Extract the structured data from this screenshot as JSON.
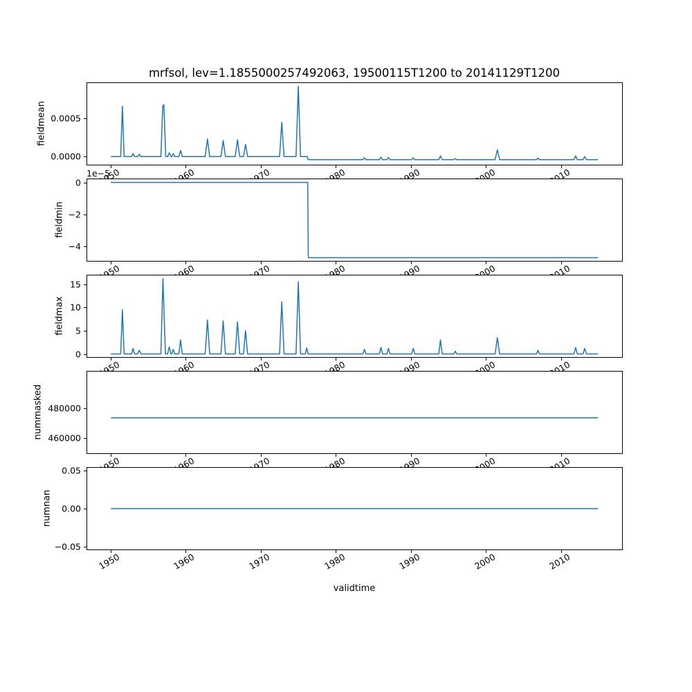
{
  "chart_data": {
    "type": "line",
    "title": "mrfsol, lev=1.1855000257492063, 19500115T1200 to 20141129T1200",
    "xlabel": "validtime",
    "line_color": "#1f77b4",
    "grid": false,
    "legend": false,
    "xlim": [
      1946.8,
      2018.2
    ],
    "xticks": [
      {
        "value": 1950,
        "label": "1950"
      },
      {
        "value": 1960,
        "label": "1960"
      },
      {
        "value": 1970,
        "label": "1970"
      },
      {
        "value": 1980,
        "label": "1980"
      },
      {
        "value": 1990,
        "label": "1990"
      },
      {
        "value": 2000,
        "label": "2000"
      },
      {
        "value": 2010,
        "label": "2010"
      }
    ],
    "subplots": [
      {
        "ylabel": "fieldmean",
        "ylim": [
          -0.000115,
          0.000972
        ],
        "yticks": [
          {
            "value": 0.0,
            "label": "0.0000"
          },
          {
            "value": 0.0005,
            "label": "0.0005"
          }
        ],
        "offset_text": null,
        "points": [
          [
            1950.04,
            0
          ],
          [
            1951.35,
            0
          ],
          [
            1951.58,
            0.00066
          ],
          [
            1951.8,
            0
          ],
          [
            1952.8,
            0
          ],
          [
            1953.0,
            4e-05
          ],
          [
            1953.2,
            0
          ],
          [
            1953.6,
            0
          ],
          [
            1953.82,
            3e-05
          ],
          [
            1954.05,
            0
          ],
          [
            1956.7,
            0
          ],
          [
            1956.95,
            0.00066
          ],
          [
            1957.1,
            0.00068
          ],
          [
            1957.35,
            0
          ],
          [
            1957.6,
            0
          ],
          [
            1957.82,
            5e-05
          ],
          [
            1958.05,
            0
          ],
          [
            1958.15,
            0
          ],
          [
            1958.35,
            4e-05
          ],
          [
            1958.55,
            0
          ],
          [
            1959.1,
            0
          ],
          [
            1959.32,
            8e-05
          ],
          [
            1959.55,
            0
          ],
          [
            1962.6,
            0
          ],
          [
            1962.9,
            0.00023
          ],
          [
            1963.2,
            0
          ],
          [
            1964.7,
            0
          ],
          [
            1965.0,
            0.00021
          ],
          [
            1965.3,
            0
          ],
          [
            1966.6,
            0
          ],
          [
            1966.9,
            0.00022
          ],
          [
            1967.2,
            0
          ],
          [
            1967.7,
            0
          ],
          [
            1967.97,
            0.00016
          ],
          [
            1968.25,
            0
          ],
          [
            1972.5,
            0
          ],
          [
            1972.8,
            0.00045
          ],
          [
            1973.1,
            0
          ],
          [
            1974.7,
            0
          ],
          [
            1975.0,
            0.00092
          ],
          [
            1975.3,
            0
          ],
          [
            1976.2,
            0
          ],
          [
            1976.3,
            -4e-05
          ],
          [
            1983.6,
            -4e-05
          ],
          [
            1983.8,
            -1.5e-05
          ],
          [
            1984.0,
            -4e-05
          ],
          [
            1985.8,
            -4e-05
          ],
          [
            1986.0,
            -8e-06
          ],
          [
            1986.2,
            -4e-05
          ],
          [
            1986.8,
            -4e-05
          ],
          [
            1987.0,
            -1.2e-05
          ],
          [
            1987.2,
            -4e-05
          ],
          [
            1990.1,
            -4e-05
          ],
          [
            1990.3,
            -1.5e-05
          ],
          [
            1990.5,
            -4e-05
          ],
          [
            1993.7,
            -4e-05
          ],
          [
            1993.92,
            1e-05
          ],
          [
            1994.15,
            -4e-05
          ],
          [
            1995.7,
            -4e-05
          ],
          [
            1995.9,
            -2.5e-05
          ],
          [
            1996.1,
            -4e-05
          ],
          [
            2001.2,
            -4e-05
          ],
          [
            2001.5,
            9e-05
          ],
          [
            2001.8,
            -4e-05
          ],
          [
            2006.7,
            -4e-05
          ],
          [
            2006.9,
            -2e-05
          ],
          [
            2007.1,
            -4e-05
          ],
          [
            2011.7,
            -4e-05
          ],
          [
            2011.92,
            1e-05
          ],
          [
            2012.15,
            -4e-05
          ],
          [
            2012.9,
            -4e-05
          ],
          [
            2013.12,
            0.0
          ],
          [
            2013.35,
            -4e-05
          ],
          [
            2014.91,
            -4e-05
          ]
        ]
      },
      {
        "ylabel": "fieldmin",
        "ylim": [
          -4.94e-05,
          2.4e-06
        ],
        "yticks": [
          {
            "value": 0.0,
            "label": "0"
          },
          {
            "value": -2e-05,
            "label": "−2"
          },
          {
            "value": -4e-05,
            "label": "−4"
          }
        ],
        "offset_text": "1e−5",
        "points": [
          [
            1950.04,
            0
          ],
          [
            1976.25,
            0
          ],
          [
            1976.33,
            -4.7e-05
          ],
          [
            2014.91,
            -4.7e-05
          ]
        ]
      },
      {
        "ylabel": "fieldmax",
        "ylim": [
          -0.81,
          17.01
        ],
        "yticks": [
          {
            "value": 0,
            "label": "0"
          },
          {
            "value": 5,
            "label": "5"
          },
          {
            "value": 10,
            "label": "10"
          },
          {
            "value": 15,
            "label": "15"
          }
        ],
        "offset_text": null,
        "points": [
          [
            1950.04,
            0
          ],
          [
            1951.35,
            0
          ],
          [
            1951.58,
            9.5
          ],
          [
            1951.8,
            0
          ],
          [
            1952.8,
            0
          ],
          [
            1953.0,
            1.2
          ],
          [
            1953.2,
            0
          ],
          [
            1953.6,
            0
          ],
          [
            1953.82,
            0.8
          ],
          [
            1954.05,
            0
          ],
          [
            1956.7,
            0
          ],
          [
            1956.98,
            16.2
          ],
          [
            1957.3,
            0
          ],
          [
            1957.6,
            0
          ],
          [
            1957.82,
            1.5
          ],
          [
            1958.05,
            0
          ],
          [
            1958.15,
            0
          ],
          [
            1958.35,
            1.0
          ],
          [
            1958.55,
            0
          ],
          [
            1959.1,
            0
          ],
          [
            1959.32,
            3.0
          ],
          [
            1959.55,
            0
          ],
          [
            1962.6,
            0
          ],
          [
            1962.9,
            7.3
          ],
          [
            1963.2,
            0
          ],
          [
            1964.7,
            0
          ],
          [
            1965.0,
            7.1
          ],
          [
            1965.3,
            0
          ],
          [
            1966.6,
            0
          ],
          [
            1966.9,
            6.9
          ],
          [
            1967.2,
            0
          ],
          [
            1967.7,
            0
          ],
          [
            1967.97,
            5.0
          ],
          [
            1968.25,
            0
          ],
          [
            1972.5,
            0
          ],
          [
            1972.8,
            11.2
          ],
          [
            1973.1,
            0
          ],
          [
            1974.7,
            0
          ],
          [
            1975.0,
            15.5
          ],
          [
            1975.3,
            0
          ],
          [
            1975.95,
            0
          ],
          [
            1976.12,
            1.3
          ],
          [
            1976.3,
            0
          ],
          [
            1983.6,
            0
          ],
          [
            1983.8,
            1.0
          ],
          [
            1984.0,
            0
          ],
          [
            1985.8,
            0
          ],
          [
            1986.0,
            1.4
          ],
          [
            1986.2,
            0
          ],
          [
            1986.8,
            0
          ],
          [
            1987.0,
            1.2
          ],
          [
            1987.2,
            0
          ],
          [
            1990.1,
            0
          ],
          [
            1990.3,
            1.2
          ],
          [
            1990.5,
            0
          ],
          [
            1993.7,
            0
          ],
          [
            1993.92,
            3.0
          ],
          [
            1994.15,
            0
          ],
          [
            1995.7,
            0
          ],
          [
            1995.9,
            0.6
          ],
          [
            1996.1,
            0
          ],
          [
            2001.2,
            0
          ],
          [
            2001.5,
            3.5
          ],
          [
            2001.8,
            0
          ],
          [
            2006.7,
            0
          ],
          [
            2006.9,
            0.8
          ],
          [
            2007.1,
            0
          ],
          [
            2011.7,
            0
          ],
          [
            2011.92,
            1.4
          ],
          [
            2012.15,
            0
          ],
          [
            2012.9,
            0
          ],
          [
            2013.12,
            1.2
          ],
          [
            2013.35,
            0
          ],
          [
            2014.91,
            0
          ]
        ]
      },
      {
        "ylabel": "nummasked",
        "ylim": [
          449300,
          505120
        ],
        "yticks": [
          {
            "value": 460000,
            "label": "460000"
          },
          {
            "value": 480000,
            "label": "480000"
          }
        ],
        "offset_text": null,
        "points": [
          [
            1950.04,
            473595
          ],
          [
            2014.91,
            473595
          ]
        ]
      },
      {
        "ylabel": "numnan",
        "ylim": [
          -0.055,
          0.055
        ],
        "yticks": [
          {
            "value": -0.05,
            "label": "−0.05"
          },
          {
            "value": 0.0,
            "label": "0.00"
          },
          {
            "value": 0.05,
            "label": "0.05"
          }
        ],
        "offset_text": null,
        "points": [
          [
            1950.04,
            0
          ],
          [
            2014.91,
            0
          ]
        ]
      }
    ]
  }
}
